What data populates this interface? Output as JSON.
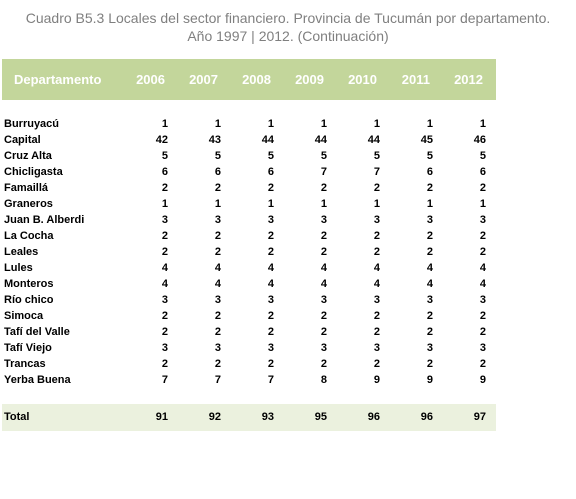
{
  "title": {
    "line1": "Cuadro B5.3 Locales del sector financiero. Provincia de Tucumán por departamento.",
    "line2": "Año 1997 | 2012. (Continuación)"
  },
  "table": {
    "header": {
      "label": "Departamento",
      "years": [
        "2006",
        "2007",
        "2008",
        "2009",
        "2010",
        "2011",
        "2012"
      ]
    },
    "rows": [
      {
        "name": "Burruyacú",
        "values": [
          "1",
          "1",
          "1",
          "1",
          "1",
          "1",
          "1"
        ]
      },
      {
        "name": "Capital",
        "values": [
          "42",
          "43",
          "44",
          "44",
          "44",
          "45",
          "46"
        ]
      },
      {
        "name": "Cruz  Alta",
        "values": [
          "5",
          "5",
          "5",
          "5",
          "5",
          "5",
          "5"
        ]
      },
      {
        "name": "Chicligasta",
        "values": [
          "6",
          "6",
          "6",
          "7",
          "7",
          "6",
          "6"
        ]
      },
      {
        "name": "Famaillá",
        "values": [
          "2",
          "2",
          "2",
          "2",
          "2",
          "2",
          "2"
        ]
      },
      {
        "name": "Graneros",
        "values": [
          "1",
          "1",
          "1",
          "1",
          "1",
          "1",
          "1"
        ]
      },
      {
        "name": "Juan B. Alberdi",
        "values": [
          "3",
          "3",
          "3",
          "3",
          "3",
          "3",
          "3"
        ]
      },
      {
        "name": "La Cocha",
        "values": [
          "2",
          "2",
          "2",
          "2",
          "2",
          "2",
          "2"
        ]
      },
      {
        "name": "Leales",
        "values": [
          "2",
          "2",
          "2",
          "2",
          "2",
          "2",
          "2"
        ]
      },
      {
        "name": "Lules",
        "values": [
          "4",
          "4",
          "4",
          "4",
          "4",
          "4",
          "4"
        ]
      },
      {
        "name": "Monteros",
        "values": [
          "4",
          "4",
          "4",
          "4",
          "4",
          "4",
          "4"
        ]
      },
      {
        "name": "Río chico",
        "values": [
          "3",
          "3",
          "3",
          "3",
          "3",
          "3",
          "3"
        ]
      },
      {
        "name": "Simoca",
        "values": [
          "2",
          "2",
          "2",
          "2",
          "2",
          "2",
          "2"
        ]
      },
      {
        "name": "Tafí del Valle",
        "values": [
          "2",
          "2",
          "2",
          "2",
          "2",
          "2",
          "2"
        ]
      },
      {
        "name": "Tafí Viejo",
        "values": [
          "3",
          "3",
          "3",
          "3",
          "3",
          "3",
          "3"
        ]
      },
      {
        "name": "Trancas",
        "values": [
          "2",
          "2",
          "2",
          "2",
          "2",
          "2",
          "2"
        ]
      },
      {
        "name": "Yerba Buena",
        "values": [
          "7",
          "7",
          "7",
          "8",
          "9",
          "9",
          "9"
        ]
      }
    ],
    "total": {
      "label": "Total",
      "values": [
        "91",
        "92",
        "93",
        "95",
        "96",
        "96",
        "97"
      ]
    }
  },
  "colors": {
    "header_bg": "#c3d69b",
    "total_bg": "#ebf1de",
    "title_text": "#7f7f7f"
  }
}
